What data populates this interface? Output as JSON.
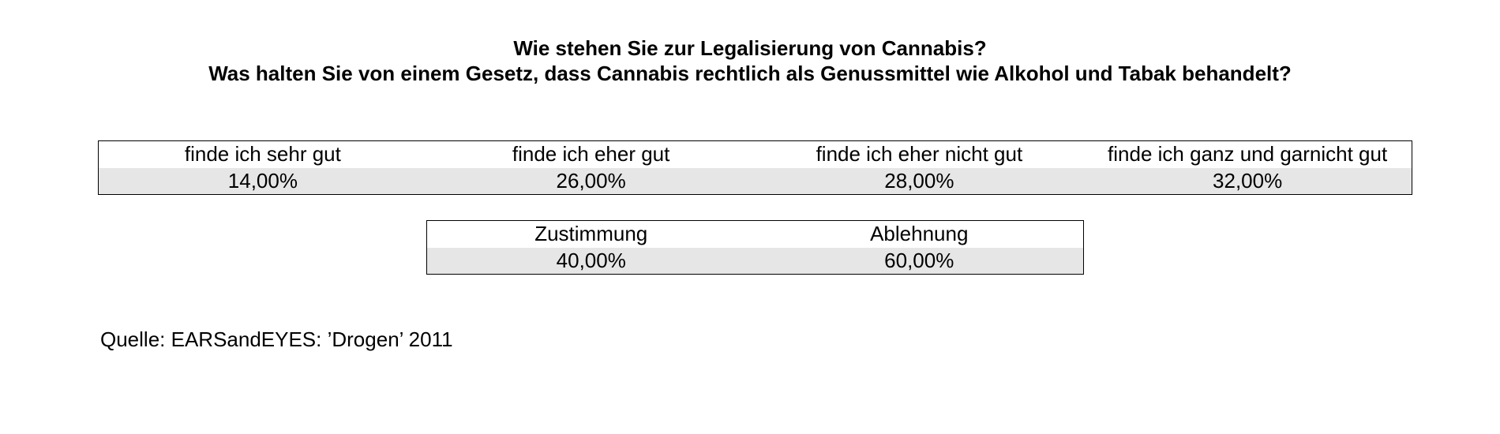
{
  "chart_data": {
    "type": "table",
    "title": "Wie stehen Sie zur Legalisierung von Cannabis?",
    "subtitle": "Was halten Sie von einem Gesetz, dass Cannabis rechtlich als Genussmittel wie Alkohol und Tabak behandelt?",
    "tables": [
      {
        "columns": [
          "finde ich sehr gut",
          "finde ich eher gut",
          "finde ich eher nicht gut",
          "finde ich ganz und garnicht gut"
        ],
        "values": [
          "14,00%",
          "26,00%",
          "28,00%",
          "32,00%"
        ]
      },
      {
        "columns": [
          "Zustimmung",
          "Ablehnung"
        ],
        "values": [
          "40,00%",
          "60,00%"
        ]
      }
    ],
    "source": "Quelle: EARSandEYES: ’Drogen’ 2011"
  }
}
